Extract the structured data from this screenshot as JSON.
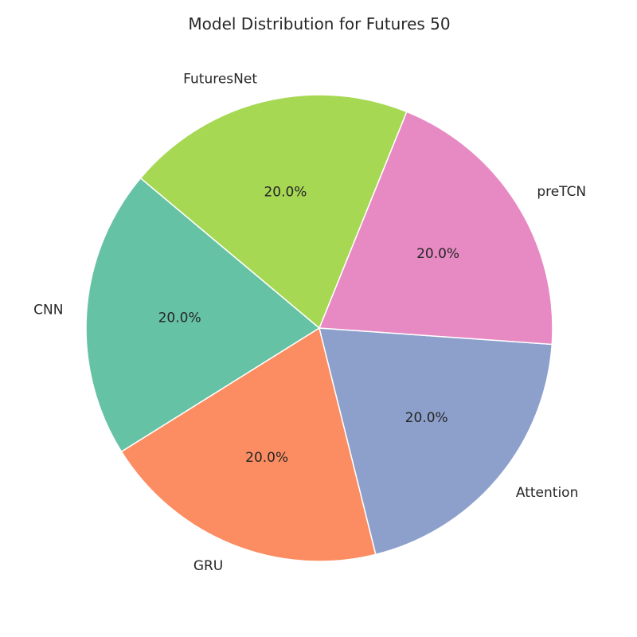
{
  "chart_data": {
    "type": "pie",
    "title": "Model Distribution for Futures 50",
    "start_angle_deg": 140,
    "direction": "counterclockwise",
    "slices": [
      {
        "label": "CNN",
        "value": 20,
        "pct_label": "20.0%",
        "color": "#66c2a5"
      },
      {
        "label": "GRU",
        "value": 20,
        "pct_label": "20.0%",
        "color": "#fc8d62"
      },
      {
        "label": "Attention",
        "value": 20,
        "pct_label": "20.0%",
        "color": "#8da0cb"
      },
      {
        "label": "preTCN",
        "value": 20,
        "pct_label": "20.0%",
        "color": "#e78ac3"
      },
      {
        "label": "FuturesNet",
        "value": 20,
        "pct_label": "20.0%",
        "color": "#a6d854"
      }
    ]
  }
}
